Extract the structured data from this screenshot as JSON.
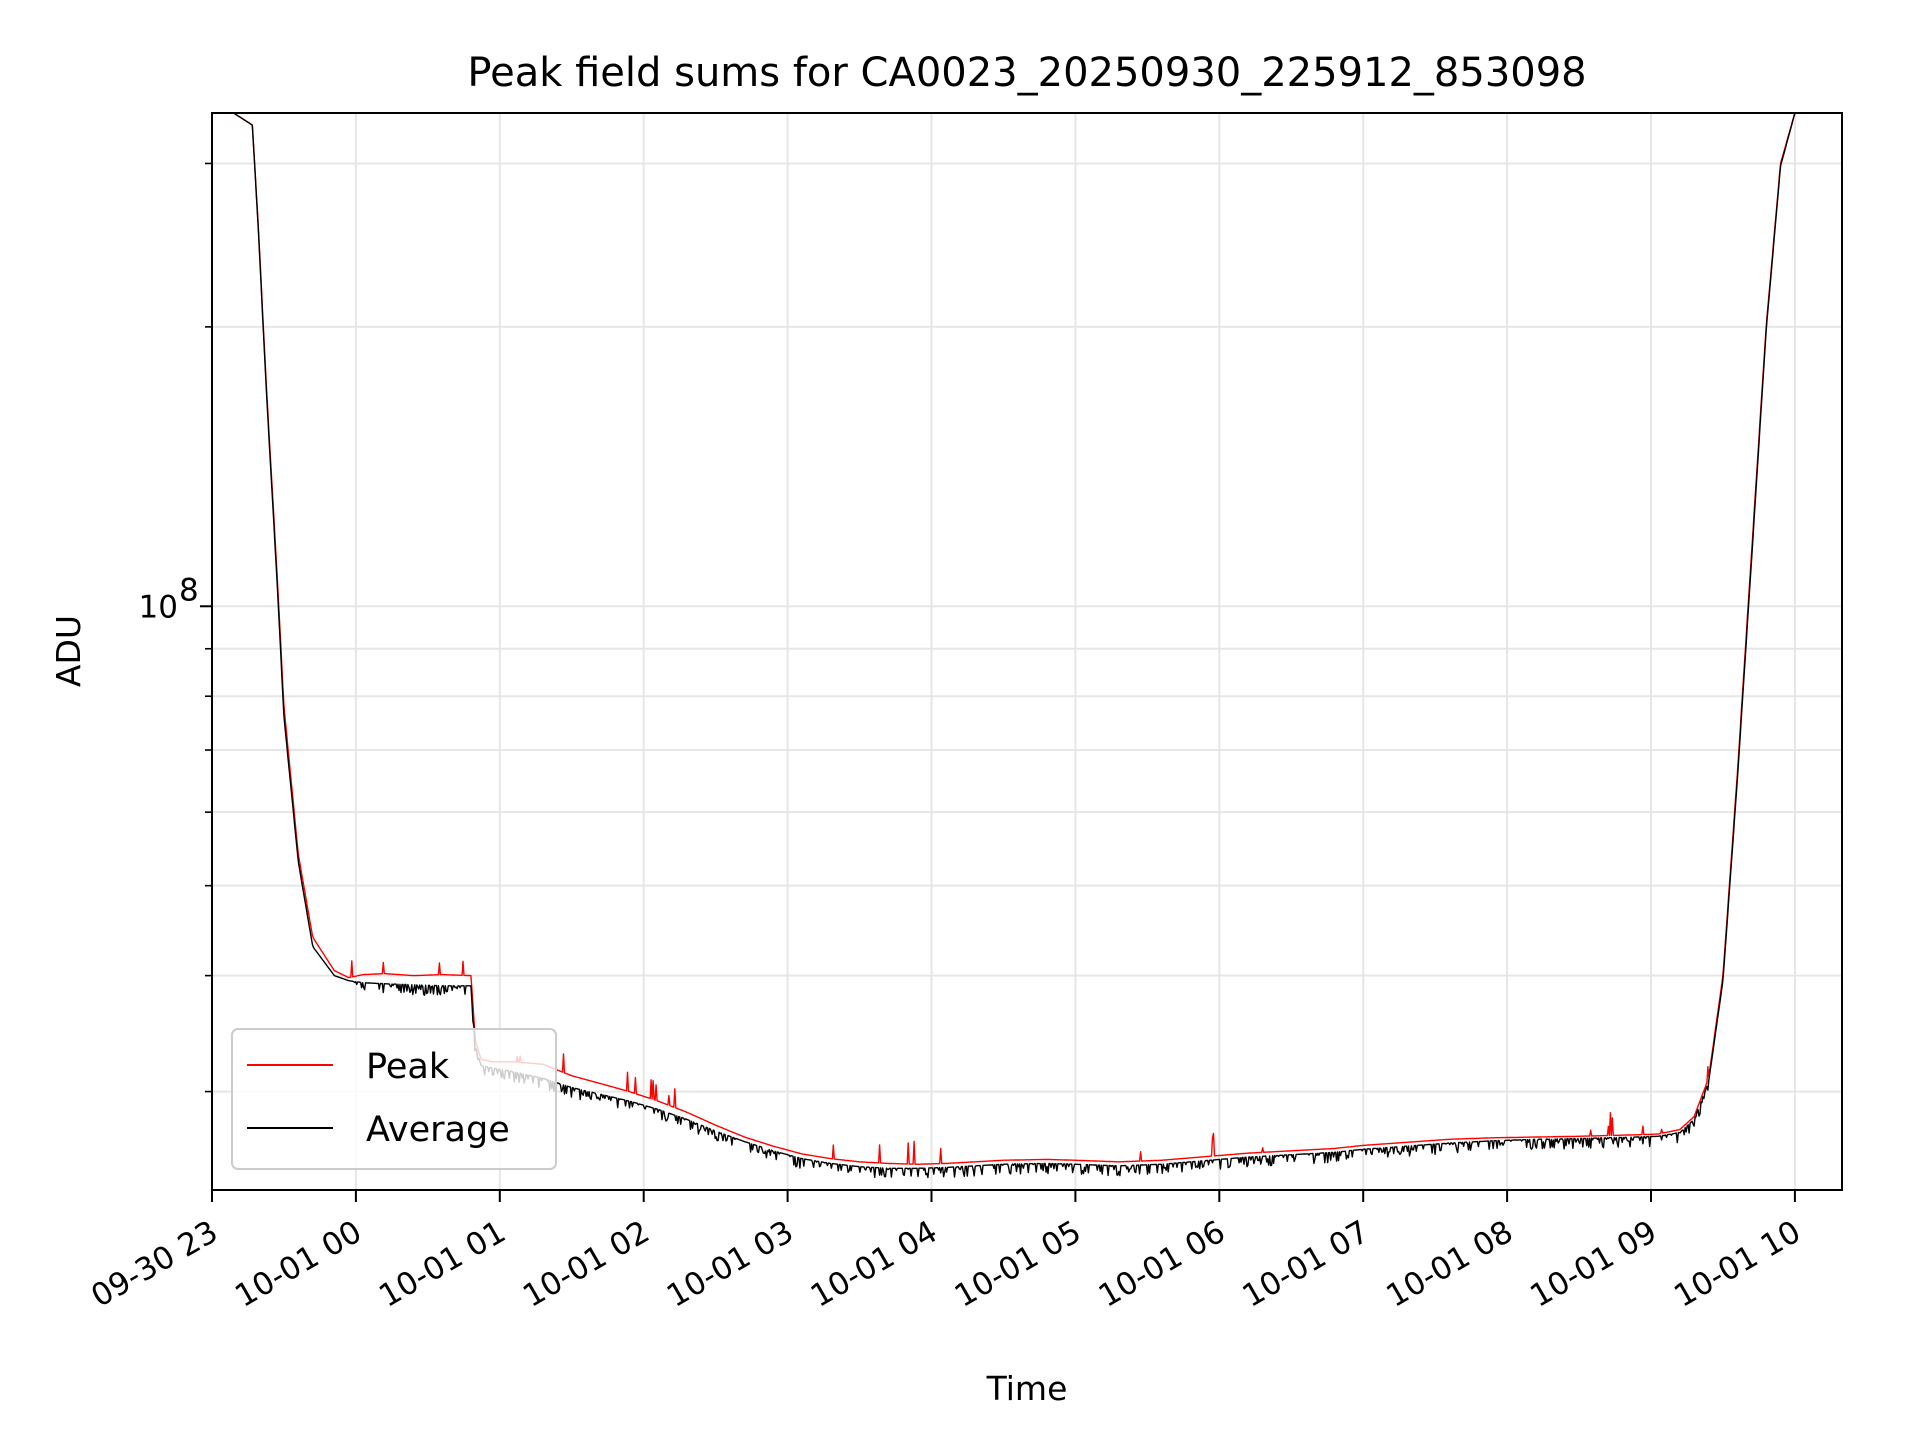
{
  "chart_data": {
    "type": "line",
    "title": "Peak field sums for CA0023_20250930_225912_853098",
    "xlabel": "Time",
    "ylabel": "ADU",
    "yscale": "log",
    "ylim": [
      23500000,
      340000000
    ],
    "xlim_hours_from_0930_23": [
      0.0,
      11.15
    ],
    "x_ticks": [
      {
        "hour": 0,
        "label": "09-30 23"
      },
      {
        "hour": 1,
        "label": "10-01 00"
      },
      {
        "hour": 2,
        "label": "10-01 01"
      },
      {
        "hour": 3,
        "label": "10-01 02"
      },
      {
        "hour": 4,
        "label": "10-01 03"
      },
      {
        "hour": 5,
        "label": "10-01 04"
      },
      {
        "hour": 6,
        "label": "10-01 05"
      },
      {
        "hour": 7,
        "label": "10-01 06"
      },
      {
        "hour": 8,
        "label": "10-01 07"
      },
      {
        "hour": 9,
        "label": "10-01 08"
      },
      {
        "hour": 10,
        "label": "10-01 09"
      },
      {
        "hour": 11,
        "label": "10-01 10"
      }
    ],
    "y_major_ticks": [
      {
        "value": 100000000,
        "base": "10",
        "exp": "8"
      }
    ],
    "y_minor_ticks": [
      30000000,
      40000000,
      50000000,
      60000000,
      70000000,
      80000000,
      90000000,
      200000000,
      300000000
    ],
    "legend": {
      "location": "lower-left",
      "entries": [
        "Peak",
        "Average"
      ]
    },
    "x_units": "hours after 09-30 23:00",
    "series": [
      {
        "name": "Peak",
        "color": "#ff0000",
        "x": [
          0.15,
          0.28,
          0.32,
          0.38,
          0.45,
          0.5,
          0.6,
          0.7,
          0.85,
          0.95,
          1.05,
          1.2,
          1.4,
          1.6,
          1.8,
          1.83,
          1.87,
          1.95,
          2.1,
          2.3,
          2.5,
          2.7,
          2.9,
          3.1,
          3.3,
          3.5,
          3.7,
          3.9,
          4.1,
          4.3,
          4.5,
          4.7,
          4.9,
          5.1,
          5.3,
          5.5,
          5.8,
          6.0,
          6.3,
          6.6,
          6.8,
          7.0,
          7.2,
          7.5,
          7.8,
          8.0,
          8.3,
          8.6,
          8.9,
          9.2,
          9.5,
          9.7,
          9.9,
          10.05,
          10.2,
          10.3,
          10.4,
          10.5,
          10.6,
          10.7,
          10.8,
          10.9,
          11.0,
          11.1
        ],
        "values": [
          340000000,
          330000000,
          260000000,
          170000000,
          110000000,
          78000000,
          54000000,
          44000000,
          40500000,
          39800000,
          40100000,
          40200000,
          40000000,
          40100000,
          40000000,
          34000000,
          32500000,
          32300000,
          32300000,
          32100000,
          31200000,
          30600000,
          30000000,
          29300000,
          28500000,
          27600000,
          26800000,
          26200000,
          25700000,
          25400000,
          25200000,
          25100000,
          25050000,
          25100000,
          25200000,
          25300000,
          25350000,
          25300000,
          25200000,
          25300000,
          25450000,
          25600000,
          25750000,
          25900000,
          26050000,
          26250000,
          26450000,
          26650000,
          26750000,
          26800000,
          26850000,
          26900000,
          26950000,
          27000000,
          27300000,
          28200000,
          31000000,
          40000000,
          66000000,
          115000000,
          200000000,
          300000000,
          340000000,
          340000000
        ]
      },
      {
        "name": "Average",
        "color": "#000000",
        "x": [
          0.15,
          0.28,
          0.32,
          0.38,
          0.45,
          0.5,
          0.6,
          0.7,
          0.85,
          0.95,
          1.05,
          1.2,
          1.4,
          1.6,
          1.8,
          1.83,
          1.87,
          1.95,
          2.1,
          2.3,
          2.5,
          2.7,
          2.9,
          3.1,
          3.3,
          3.5,
          3.7,
          3.9,
          4.1,
          4.3,
          4.5,
          4.7,
          4.9,
          5.1,
          5.3,
          5.5,
          5.8,
          6.0,
          6.3,
          6.6,
          6.8,
          7.0,
          7.2,
          7.5,
          7.8,
          8.0,
          8.3,
          8.6,
          8.9,
          9.2,
          9.5,
          9.7,
          9.9,
          10.05,
          10.2,
          10.3,
          10.4,
          10.5,
          10.6,
          10.7,
          10.8,
          10.9,
          11.0,
          11.1
        ],
        "values": [
          340000000,
          330000000,
          258000000,
          168000000,
          108000000,
          76000000,
          53000000,
          43000000,
          40000000,
          39500000,
          39300000,
          39200000,
          39100000,
          39000000,
          39000000,
          33500000,
          32000000,
          31800000,
          31500000,
          31000000,
          30300000,
          29800000,
          29300000,
          28700000,
          28000000,
          27200000,
          26500000,
          25900000,
          25400000,
          25100000,
          24900000,
          24800000,
          24800000,
          24850000,
          24950000,
          25050000,
          25100000,
          25050000,
          24950000,
          25050000,
          25200000,
          25350000,
          25500000,
          25650000,
          25800000,
          26000000,
          26200000,
          26400000,
          26550000,
          26650000,
          26700000,
          26750000,
          26800000,
          26850000,
          27100000,
          28000000,
          30700000,
          39500000,
          65000000,
          113000000,
          198000000,
          298000000,
          340000000,
          340000000
        ]
      }
    ]
  }
}
